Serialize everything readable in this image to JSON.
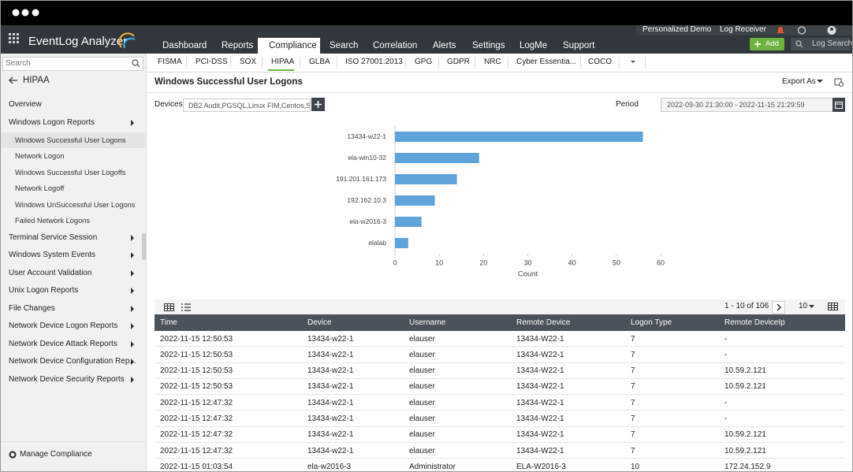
{
  "header": {
    "logo": "EventLog Analyzer",
    "nav": [
      "Dashboard",
      "Reports",
      "Compliance",
      "Search",
      "Correlation",
      "Alerts",
      "Settings",
      "LogMe",
      "Support"
    ],
    "user_links": [
      "Personalized Demo",
      "Log Receiver"
    ],
    "add_button": "Add",
    "log_search": "Log Search"
  },
  "compliance_tabs": [
    "FISMA",
    "PCI-DSS",
    "SOX",
    "HIPAA",
    "GLBA",
    "ISO 27001:2013",
    "GPG",
    "GDPR",
    "NRC",
    "Cyber Essentia...",
    "COCO"
  ],
  "sidebar": {
    "search": "Search",
    "back_title": "HIPAA",
    "menu": [
      {
        "label": "Overview"
      },
      {
        "label": "Windows Logon Reports",
        "items": [
          "Windows Successful User Logons",
          "Network Logon",
          "Windows Successful User Logoffs",
          "Network Logoff",
          "Windows UnSuccessful User Logons",
          "Failed Network Logons"
        ]
      },
      {
        "label": "Terminal Service Session"
      },
      {
        "label": "Windows System Events"
      },
      {
        "label": "User Account Validation"
      },
      {
        "label": "Unix Logon Reports"
      },
      {
        "label": "File Changes"
      },
      {
        "label": "Network Device Logon Reports"
      },
      {
        "label": "Network Device Attack Reports"
      },
      {
        "label": "Network Device Configuration Rep..."
      },
      {
        "label": "Network Device Security Reports"
      }
    ],
    "footer": "Manage Compliance"
  },
  "report": {
    "title": "Windows Successful User Logons",
    "export": "Export As",
    "devices_label": "Devices",
    "devices_value": "DB2 Audit,PGSQL,Linux FIM,Centos,S...",
    "period_label": "Period",
    "period_value": "2022-09-30 21:30:00 - 2022-11-15 21:29:59"
  },
  "chart_data": {
    "type": "bar",
    "orientation": "horizontal",
    "categories": [
      "13434-w22-1",
      "ela-win10-32",
      "191.201.161.173",
      "192.162.10.3",
      "ela-w2016-3",
      "elalab"
    ],
    "values": [
      56,
      19,
      14,
      9,
      6,
      3
    ],
    "color": "#5ea4da",
    "xlim": [
      0,
      60
    ],
    "xticks": [
      0,
      10,
      20,
      30,
      40,
      50,
      60
    ],
    "x_label": "Count"
  },
  "table": {
    "pagination": "1 - 10 of 106",
    "page_size": "10",
    "columns": [
      "Time",
      "Device",
      "Username",
      "Remote Device",
      "Logon Type",
      "Remote DeviceIp"
    ],
    "rows": [
      [
        "2022-11-15 12:50:53",
        "13434-w22-1",
        "elauser",
        "13434-W22-1",
        "7",
        "-"
      ],
      [
        "2022-11-15 12:50:53",
        "13434-w22-1",
        "elauser",
        "13434-W22-1",
        "7",
        "-"
      ],
      [
        "2022-11-15 12:50:53",
        "13434-w22-1",
        "elauser",
        "13434-W22-1",
        "7",
        "10.59.2.121"
      ],
      [
        "2022-11-15 12:50:53",
        "13434-w22-1",
        "elauser",
        "13434-W22-1",
        "7",
        "10.59.2.121"
      ],
      [
        "2022-11-15 12:47:32",
        "13434-w22-1",
        "elauser",
        "13434-W22-1",
        "7",
        "-"
      ],
      [
        "2022-11-15 12:47:32",
        "13434-w22-1",
        "elauser",
        "13434-W22-1",
        "7",
        "-"
      ],
      [
        "2022-11-15 12:47:32",
        "13434-w22-1",
        "elauser",
        "13434-W22-1",
        "7",
        "10.59.2.121"
      ],
      [
        "2022-11-15 12:47:32",
        "13434-w22-1",
        "elauser",
        "13434-W22-1",
        "7",
        "10.59.2.121"
      ],
      [
        "2022-11-15 01:03:54",
        "ela-w2016-3",
        "Administrator",
        "ELA-W2016-3",
        "10",
        "172.24.152.9"
      ]
    ]
  }
}
